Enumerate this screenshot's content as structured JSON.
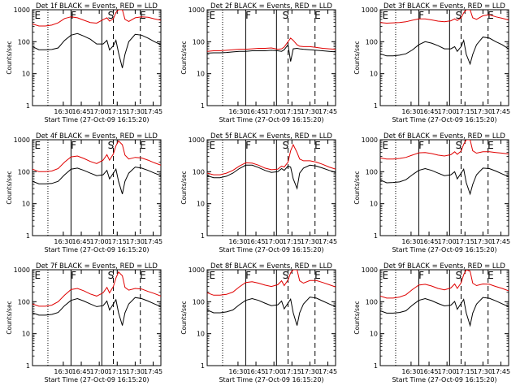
{
  "figure": {
    "xlabel": "Start Time (27-Oct-09 16:15:20)",
    "ylabel": "Counts/sec",
    "colors": {
      "events": "#000000",
      "lld": "#e00000",
      "axes": "#000000"
    }
  },
  "chart_data": [
    {
      "type": "line",
      "title": "Det 1f BLACK = Events, RED = LLD",
      "xlabel": "Start Time (27-Oct-09 16:15:20)",
      "ylabel": "Counts/sec",
      "xtick_labels": [
        "16:30",
        "16:45",
        "17:00",
        "17:15",
        "17:30",
        "17:45"
      ],
      "ytick_labels": [
        "1",
        "10",
        "100",
        "1000"
      ],
      "ylim": [
        1,
        1000
      ],
      "yscale": "log",
      "region_labels": [
        "E",
        "F",
        "S",
        "E"
      ],
      "x": [
        0,
        5,
        10,
        15,
        20,
        25,
        30,
        35,
        40,
        45,
        50,
        55,
        58,
        60,
        63,
        65,
        67,
        70,
        72,
        75,
        80,
        85,
        90,
        95,
        100
      ],
      "series": [
        {
          "color": "red",
          "values": [
            360,
            310,
            310,
            330,
            390,
            530,
            600,
            560,
            470,
            400,
            380,
            490,
            560,
            440,
            520,
            820,
            1000,
            1000,
            500,
            430,
            560,
            600,
            580,
            520,
            470
          ]
        },
        {
          "color": "black",
          "values": [
            70,
            56,
            56,
            57,
            64,
            110,
            160,
            180,
            150,
            120,
            85,
            85,
            110,
            55,
            75,
            110,
            45,
            15,
            40,
            100,
            170,
            160,
            130,
            100,
            80
          ]
        }
      ]
    },
    {
      "type": "line",
      "title": "Det 2f BLACK = Events, RED = LLD",
      "xlabel": "Start Time (27-Oct-09 16:15:20)",
      "ylabel": "Counts/sec",
      "xtick_labels": [
        "16:30",
        "16:45",
        "17:00",
        "17:15",
        "17:30",
        "17:45"
      ],
      "ytick_labels": [
        "1",
        "10",
        "100",
        "1000"
      ],
      "ylim": [
        1,
        1000
      ],
      "yscale": "log",
      "region_labels": [
        "E",
        "F",
        "S",
        "E"
      ],
      "x": [
        0,
        5,
        10,
        15,
        20,
        25,
        30,
        35,
        40,
        45,
        50,
        55,
        58,
        60,
        63,
        65,
        67,
        70,
        72,
        75,
        80,
        85,
        90,
        95,
        100
      ],
      "series": [
        {
          "color": "red",
          "values": [
            50,
            52,
            52,
            54,
            56,
            58,
            58,
            60,
            62,
            62,
            64,
            58,
            60,
            68,
            100,
            130,
            110,
            80,
            72,
            70,
            70,
            66,
            62,
            60,
            58
          ]
        },
        {
          "color": "black",
          "values": [
            44,
            45,
            45,
            46,
            48,
            50,
            50,
            52,
            52,
            52,
            54,
            52,
            50,
            56,
            80,
            24,
            60,
            62,
            60,
            58,
            56,
            54,
            52,
            50,
            48
          ]
        }
      ]
    },
    {
      "type": "line",
      "title": "Det 3f BLACK = Events, RED = LLD",
      "xlabel": "Start Time (27-Oct-09 16:15:20)",
      "ylabel": "Counts/sec",
      "xtick_labels": [
        "16:30",
        "16:45",
        "17:00",
        "17:15",
        "17:30",
        "17:45"
      ],
      "ytick_labels": [
        "1",
        "10",
        "100",
        "1000"
      ],
      "ylim": [
        1,
        1000
      ],
      "yscale": "log",
      "region_labels": [
        "E",
        "F",
        "S",
        "E"
      ],
      "x": [
        0,
        5,
        10,
        15,
        20,
        25,
        30,
        35,
        40,
        45,
        50,
        55,
        58,
        60,
        63,
        65,
        67,
        70,
        72,
        75,
        80,
        85,
        90,
        95,
        100
      ],
      "series": [
        {
          "color": "red",
          "values": [
            400,
            380,
            390,
            400,
            420,
            470,
            520,
            520,
            480,
            440,
            420,
            450,
            520,
            460,
            560,
            800,
            1000,
            1000,
            560,
            500,
            650,
            700,
            600,
            540,
            480
          ]
        },
        {
          "color": "black",
          "values": [
            42,
            36,
            36,
            38,
            42,
            55,
            80,
            100,
            90,
            75,
            60,
            60,
            70,
            50,
            70,
            110,
            40,
            20,
            40,
            80,
            140,
            130,
            100,
            80,
            60
          ]
        }
      ]
    },
    {
      "type": "line",
      "title": "Det 4f BLACK = Events, RED = LLD",
      "xlabel": "Start Time (27-Oct-09 16:15:20)",
      "ylabel": "Counts/sec",
      "xtick_labels": [
        "16:30",
        "16:45",
        "17:00",
        "17:15",
        "17:30",
        "17:45"
      ],
      "ytick_labels": [
        "1",
        "10",
        "100",
        "1000"
      ],
      "ylim": [
        1,
        1000
      ],
      "yscale": "log",
      "region_labels": [
        "E",
        "F",
        "S",
        "E"
      ],
      "x": [
        0,
        5,
        10,
        15,
        20,
        25,
        30,
        35,
        40,
        45,
        50,
        55,
        58,
        60,
        63,
        65,
        67,
        70,
        72,
        75,
        80,
        85,
        90,
        95,
        100
      ],
      "series": [
        {
          "color": "red",
          "values": [
            120,
            100,
            100,
            105,
            125,
            200,
            290,
            310,
            260,
            210,
            180,
            230,
            340,
            230,
            360,
            650,
            920,
            700,
            330,
            250,
            280,
            270,
            230,
            190,
            160
          ]
        },
        {
          "color": "black",
          "values": [
            50,
            42,
            42,
            43,
            50,
            80,
            120,
            130,
            110,
            90,
            75,
            80,
            110,
            60,
            90,
            120,
            50,
            20,
            50,
            90,
            140,
            130,
            110,
            90,
            75
          ]
        }
      ]
    },
    {
      "type": "line",
      "title": "Det 5f BLACK = Events, RED = LLD",
      "xlabel": "Start Time (27-Oct-09 16:15:20)",
      "ylabel": "Counts/sec",
      "xtick_labels": [
        "16:30",
        "16:45",
        "17:00",
        "17:15",
        "17:30",
        "17:45"
      ],
      "ytick_labels": [
        "1",
        "10",
        "100",
        "1000"
      ],
      "ylim": [
        1,
        1000
      ],
      "yscale": "log",
      "region_labels": [
        "E",
        "F",
        "S",
        "E"
      ],
      "x": [
        0,
        5,
        10,
        15,
        20,
        25,
        30,
        35,
        40,
        45,
        50,
        55,
        58,
        60,
        63,
        65,
        67,
        70,
        72,
        75,
        80,
        85,
        90,
        95,
        100
      ],
      "series": [
        {
          "color": "red",
          "values": [
            90,
            80,
            80,
            90,
            110,
            150,
            190,
            185,
            160,
            130,
            115,
            120,
            150,
            140,
            200,
            450,
            700,
            400,
            250,
            220,
            220,
            200,
            170,
            140,
            120
          ]
        },
        {
          "color": "black",
          "values": [
            75,
            65,
            65,
            72,
            90,
            125,
            160,
            160,
            135,
            110,
            95,
            100,
            125,
            110,
            150,
            140,
            60,
            30,
            90,
            130,
            160,
            150,
            130,
            110,
            95
          ]
        }
      ]
    },
    {
      "type": "line",
      "title": "Det 6f BLACK = Events, RED = LLD",
      "xlabel": "Start Time (27-Oct-09 16:15:20)",
      "ylabel": "Counts/sec",
      "xtick_labels": [
        "16:30",
        "16:45",
        "17:00",
        "17:15",
        "17:30",
        "17:45"
      ],
      "ytick_labels": [
        "1",
        "10",
        "100",
        "1000"
      ],
      "ylim": [
        1,
        1000
      ],
      "yscale": "log",
      "region_labels": [
        "E",
        "F",
        "S",
        "E"
      ],
      "x": [
        0,
        5,
        10,
        15,
        20,
        25,
        30,
        35,
        40,
        45,
        50,
        55,
        58,
        60,
        63,
        65,
        67,
        70,
        72,
        75,
        80,
        85,
        90,
        95,
        100
      ],
      "series": [
        {
          "color": "red",
          "values": [
            270,
            250,
            250,
            260,
            280,
            330,
            390,
            400,
            370,
            330,
            310,
            340,
            420,
            350,
            440,
            720,
            1000,
            1000,
            450,
            380,
            420,
            420,
            400,
            380,
            360
          ]
        },
        {
          "color": "black",
          "values": [
            55,
            45,
            46,
            48,
            56,
            80,
            110,
            125,
            110,
            90,
            75,
            80,
            100,
            60,
            90,
            120,
            45,
            20,
            40,
            80,
            130,
            125,
            105,
            85,
            70
          ]
        }
      ]
    },
    {
      "type": "line",
      "title": "Det 7f BLACK = Events, RED = LLD",
      "xlabel": "Start Time (27-Oct-09 16:15:20)",
      "ylabel": "Counts/sec",
      "xtick_labels": [
        "16:30",
        "16:45",
        "17:00",
        "17:15",
        "17:30",
        "17:45"
      ],
      "ytick_labels": [
        "1",
        "10",
        "100",
        "1000"
      ],
      "ylim": [
        1,
        1000
      ],
      "yscale": "log",
      "region_labels": [
        "E",
        "F",
        "S",
        "E"
      ],
      "x": [
        0,
        5,
        10,
        15,
        20,
        25,
        30,
        35,
        40,
        45,
        50,
        55,
        58,
        60,
        63,
        65,
        67,
        70,
        72,
        75,
        80,
        85,
        90,
        95,
        100
      ],
      "series": [
        {
          "color": "red",
          "values": [
            85,
            72,
            72,
            78,
            100,
            160,
            240,
            260,
            220,
            175,
            150,
            190,
            280,
            190,
            300,
            550,
            850,
            650,
            280,
            230,
            260,
            250,
            210,
            180,
            150
          ]
        },
        {
          "color": "black",
          "values": [
            45,
            38,
            38,
            40,
            46,
            75,
            110,
            125,
            105,
            85,
            70,
            75,
            105,
            55,
            85,
            115,
            45,
            18,
            45,
            85,
            135,
            125,
            105,
            85,
            70
          ]
        }
      ]
    },
    {
      "type": "line",
      "title": "Det 8f BLACK = Events, RED = LLD",
      "xlabel": "Start Time (27-Oct-09 16:15:20)",
      "ylabel": "Counts/sec",
      "xtick_labels": [
        "16:30",
        "16:45",
        "17:00",
        "17:15",
        "17:30",
        "17:45"
      ],
      "ytick_labels": [
        "1",
        "10",
        "100",
        "1000"
      ],
      "ylim": [
        1,
        1000
      ],
      "yscale": "log",
      "region_labels": [
        "E",
        "F",
        "S",
        "E"
      ],
      "x": [
        0,
        5,
        10,
        15,
        20,
        25,
        30,
        35,
        40,
        45,
        50,
        55,
        58,
        60,
        63,
        65,
        67,
        70,
        72,
        75,
        80,
        85,
        90,
        95,
        100
      ],
      "series": [
        {
          "color": "red",
          "values": [
            190,
            160,
            160,
            170,
            200,
            290,
            400,
            420,
            380,
            330,
            300,
            340,
            450,
            320,
            480,
            800,
            1000,
            1000,
            450,
            380,
            460,
            460,
            400,
            340,
            290
          ]
        },
        {
          "color": "black",
          "values": [
            55,
            45,
            45,
            48,
            55,
            80,
            110,
            125,
            110,
            90,
            75,
            80,
            105,
            60,
            90,
            120,
            45,
            18,
            45,
            85,
            140,
            130,
            105,
            85,
            70
          ]
        }
      ]
    },
    {
      "type": "line",
      "title": "Det 9f BLACK = Events, RED = LLD",
      "xlabel": "Start Time (27-Oct-09 16:15:20)",
      "ylabel": "Counts/sec",
      "xtick_labels": [
        "16:30",
        "16:45",
        "17:00",
        "17:15",
        "17:30",
        "17:45"
      ],
      "ytick_labels": [
        "1",
        "10",
        "100",
        "1000"
      ],
      "ylim": [
        1,
        1000
      ],
      "yscale": "log",
      "region_labels": [
        "E",
        "F",
        "S",
        "E"
      ],
      "x": [
        0,
        5,
        10,
        15,
        20,
        25,
        30,
        35,
        40,
        45,
        50,
        55,
        58,
        60,
        63,
        65,
        67,
        70,
        72,
        75,
        80,
        85,
        90,
        95,
        100
      ],
      "series": [
        {
          "color": "red",
          "values": [
            150,
            130,
            130,
            140,
            165,
            240,
            330,
            350,
            310,
            260,
            235,
            270,
            360,
            260,
            390,
            700,
            1000,
            900,
            380,
            320,
            360,
            350,
            300,
            260,
            220
          ]
        },
        {
          "color": "black",
          "values": [
            52,
            44,
            44,
            46,
            52,
            78,
            110,
            125,
            108,
            88,
            74,
            78,
            102,
            58,
            88,
            118,
            44,
            18,
            44,
            84,
            136,
            128,
            106,
            86,
            70
          ]
        }
      ]
    }
  ]
}
